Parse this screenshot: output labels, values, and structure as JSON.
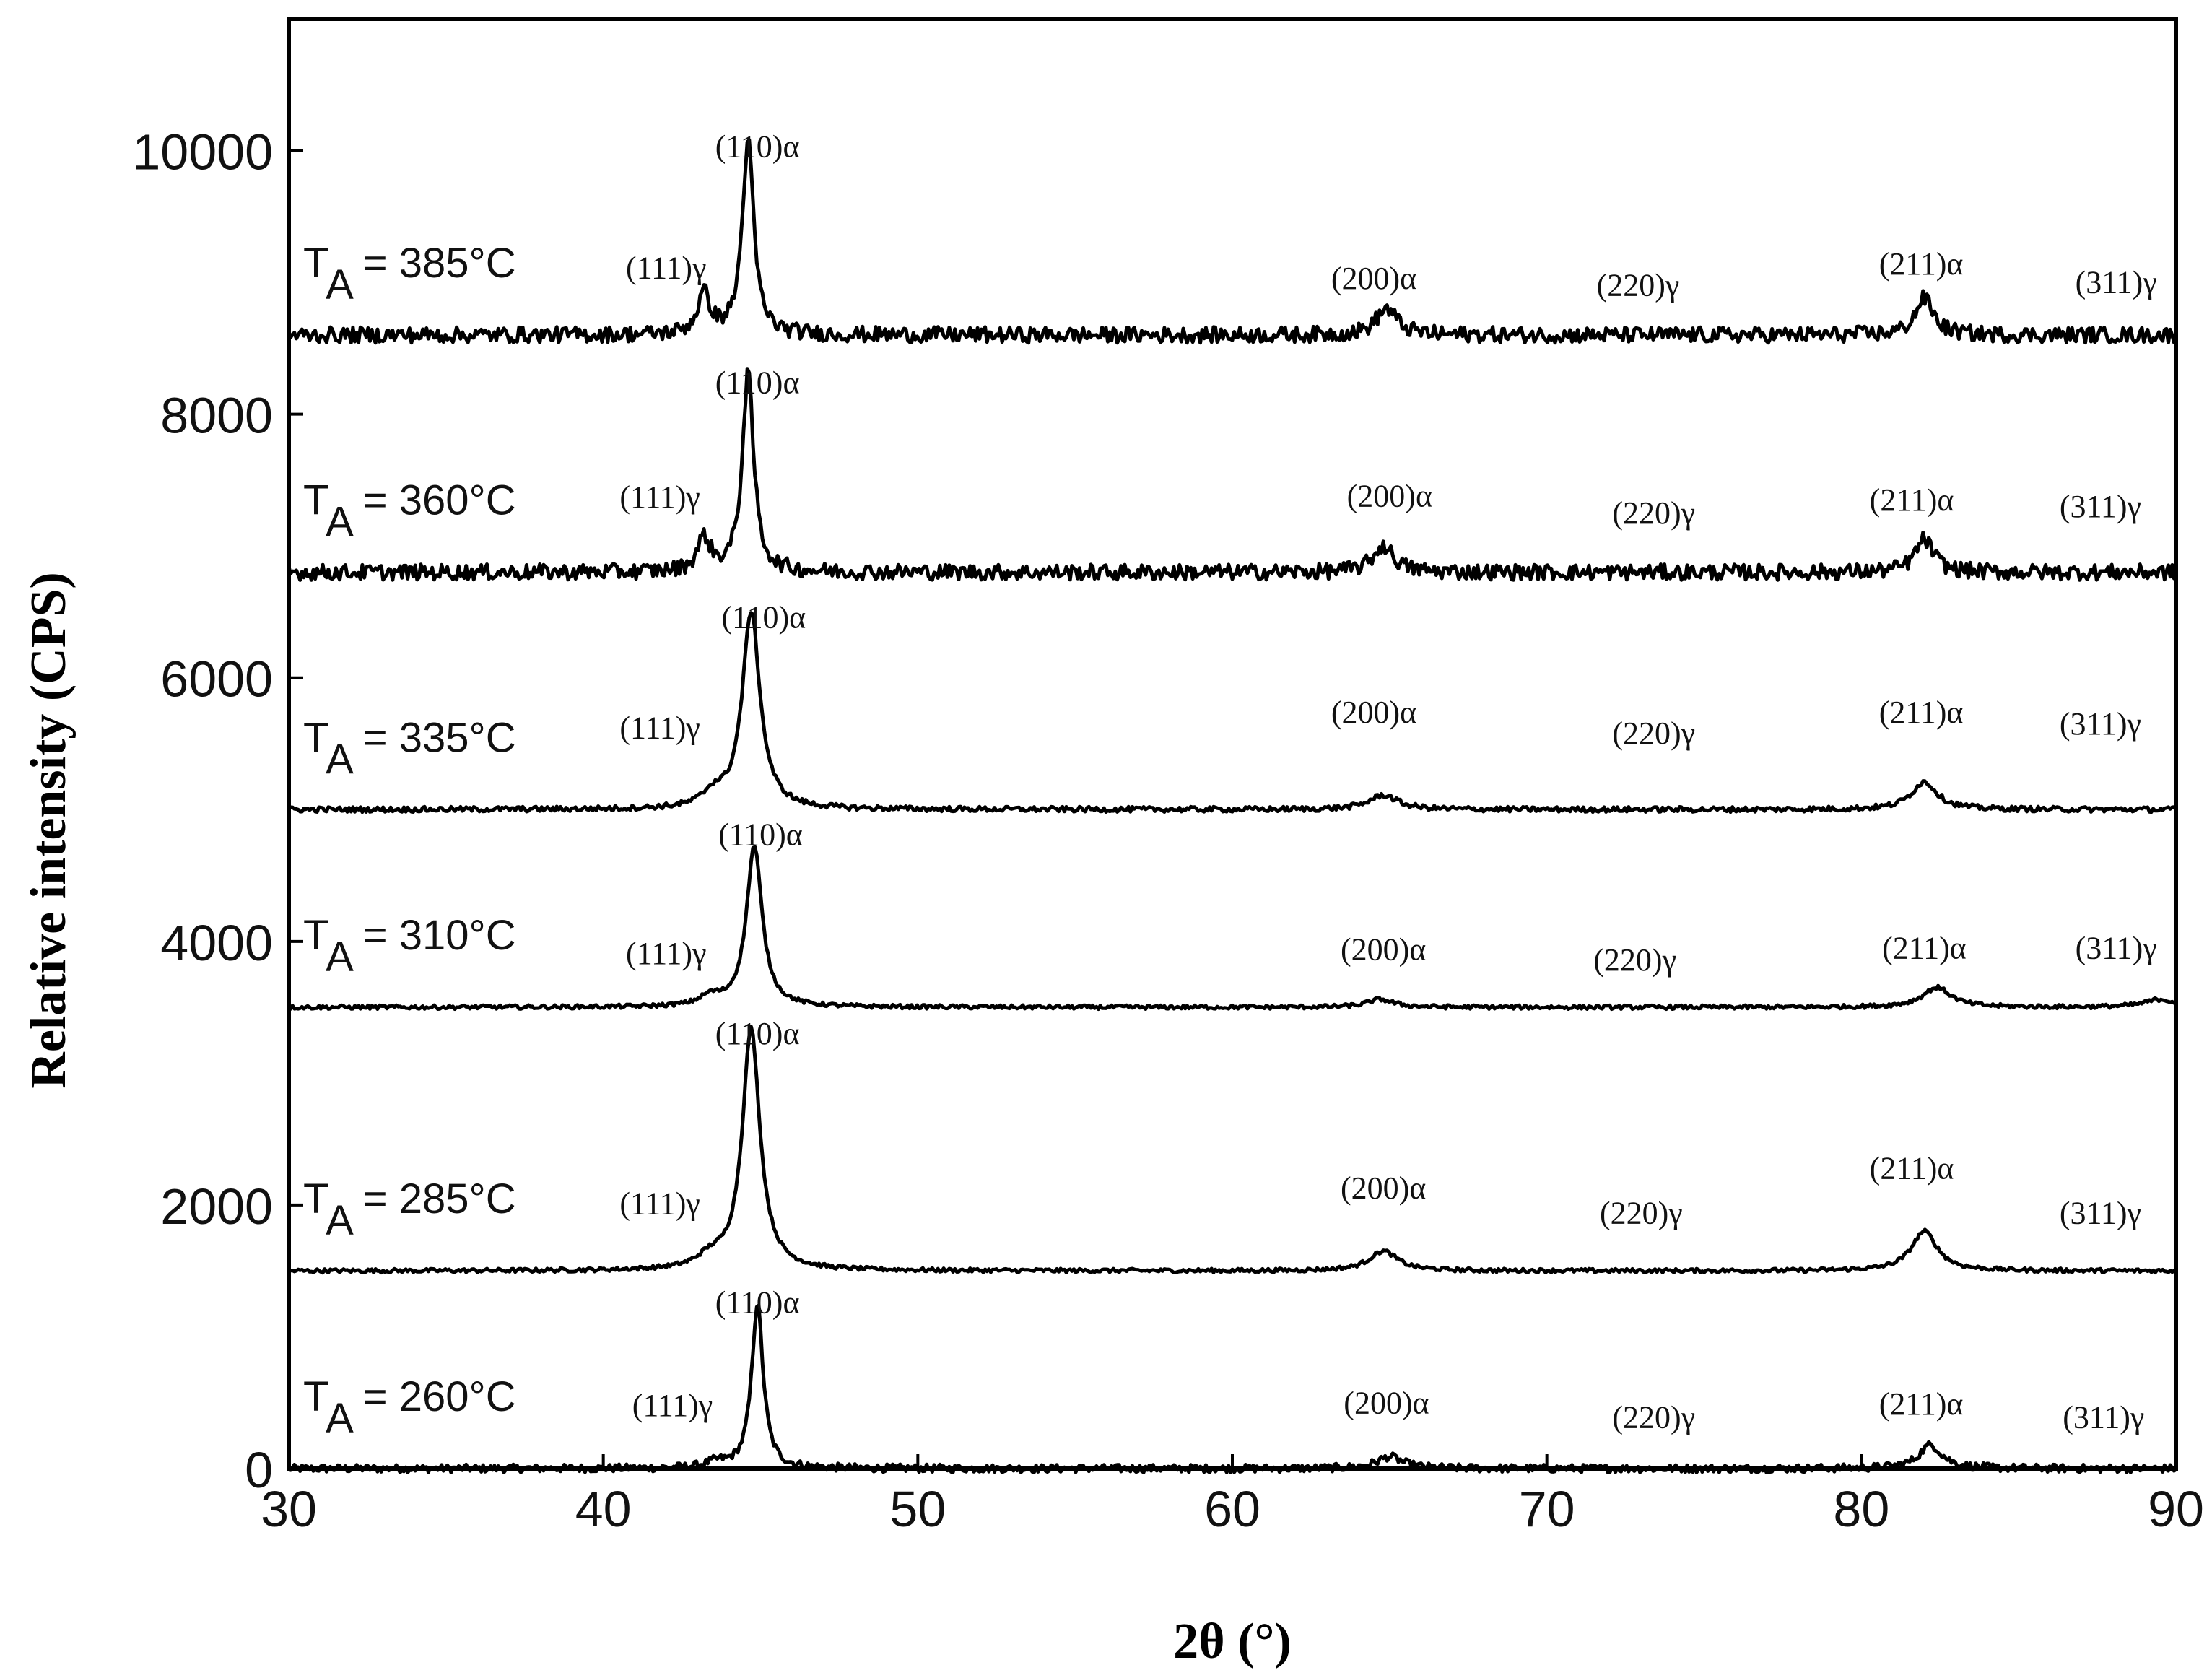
{
  "chart_data": {
    "type": "line",
    "xlabel": "2θ (°)",
    "ylabel": "Relative intensity (CPS)",
    "xlim": [
      30,
      90
    ],
    "ylim": [
      0,
      11000
    ],
    "xticks": [
      "30",
      "40",
      "50",
      "60",
      "70",
      "80",
      "90"
    ],
    "yticks": [
      "0",
      "2000",
      "4000",
      "6000",
      "8000",
      "10000"
    ],
    "grid": false,
    "legend": "none",
    "series": [
      {
        "label_prefix": "T",
        "label_sub": "A",
        "label_suffix": " = 260°C",
        "baseline": 0,
        "noise": 30,
        "peaks": [
          [
            43.6,
            40,
            0.4
          ],
          [
            44.9,
            1250,
            0.22
          ],
          [
            65.0,
            90,
            0.5
          ],
          [
            82.2,
            180,
            0.45
          ]
        ],
        "annotations": [
          {
            "text": "(110)α",
            "x": 44.9,
            "y": 1180
          },
          {
            "text": "(111)γ",
            "x": 42.2,
            "y": 400
          },
          {
            "text": "(200)α",
            "x": 64.9,
            "y": 420
          },
          {
            "text": "(220)γ",
            "x": 73.4,
            "y": 310
          },
          {
            "text": "(211)α",
            "x": 81.9,
            "y": 410
          },
          {
            "text": "(311)γ",
            "x": 87.7,
            "y": 310
          }
        ]
      },
      {
        "label_prefix": "T",
        "label_sub": "A",
        "label_suffix": " = 285°C",
        "baseline": 1500,
        "noise": 15,
        "peaks": [
          [
            43.4,
            80,
            0.5
          ],
          [
            44.7,
            1830,
            0.34
          ],
          [
            64.8,
            150,
            0.55
          ],
          [
            82.0,
            300,
            0.5
          ]
        ],
        "annotations": [
          {
            "text": "(110)α",
            "x": 44.9,
            "y": 3220
          },
          {
            "text": "(111)γ",
            "x": 41.8,
            "y": 1930
          },
          {
            "text": "(200)α",
            "x": 64.8,
            "y": 2050
          },
          {
            "text": "(220)γ",
            "x": 73.0,
            "y": 1860
          },
          {
            "text": "(211)α",
            "x": 81.6,
            "y": 2200
          },
          {
            "text": "(311)γ",
            "x": 87.6,
            "y": 1860
          }
        ]
      },
      {
        "label_prefix": "T",
        "label_sub": "A",
        "label_suffix": " = 310°C",
        "baseline": 3500,
        "noise": 15,
        "peaks": [
          [
            43.4,
            70,
            0.4
          ],
          [
            44.8,
            1220,
            0.3
          ],
          [
            64.7,
            60,
            0.5
          ],
          [
            82.4,
            150,
            0.55
          ],
          [
            89.5,
            60,
            0.6
          ]
        ],
        "annotations": [
          {
            "text": "(110)α",
            "x": 45.0,
            "y": 4730
          },
          {
            "text": "(111)γ",
            "x": 42.0,
            "y": 3830
          },
          {
            "text": "(200)α",
            "x": 64.8,
            "y": 3860
          },
          {
            "text": "(220)γ",
            "x": 72.8,
            "y": 3780
          },
          {
            "text": "(211)α",
            "x": 82.0,
            "y": 3870
          },
          {
            "text": "(311)γ",
            "x": 88.1,
            "y": 3870
          }
        ]
      },
      {
        "label_prefix": "T",
        "label_sub": "A",
        "label_suffix": " = 335°C",
        "baseline": 5000,
        "noise": 20,
        "peaks": [
          [
            43.5,
            100,
            0.4
          ],
          [
            44.7,
            1500,
            0.34
          ],
          [
            64.8,
            110,
            0.55
          ],
          [
            82.0,
            210,
            0.5
          ]
        ],
        "annotations": [
          {
            "text": "(110)α",
            "x": 45.1,
            "y": 6380
          },
          {
            "text": "(111)γ",
            "x": 41.8,
            "y": 5540
          },
          {
            "text": "(200)α",
            "x": 64.5,
            "y": 5660
          },
          {
            "text": "(220)γ",
            "x": 73.4,
            "y": 5500
          },
          {
            "text": "(211)α",
            "x": 81.9,
            "y": 5660
          },
          {
            "text": "(311)γ",
            "x": 87.6,
            "y": 5570
          }
        ]
      },
      {
        "label_prefix": "T",
        "label_sub": "A",
        "label_suffix": " = 360°C",
        "baseline": 6800,
        "noise": 60,
        "peaks": [
          [
            43.2,
            250,
            0.25
          ],
          [
            44.6,
            1500,
            0.22
          ],
          [
            64.8,
            200,
            0.4
          ],
          [
            82.0,
            250,
            0.35
          ]
        ],
        "annotations": [
          {
            "text": "(110)α",
            "x": 44.9,
            "y": 8160
          },
          {
            "text": "(111)γ",
            "x": 41.8,
            "y": 7290
          },
          {
            "text": "(200)α",
            "x": 65.0,
            "y": 7300
          },
          {
            "text": "(220)γ",
            "x": 73.4,
            "y": 7170
          },
          {
            "text": "(211)α",
            "x": 81.6,
            "y": 7270
          },
          {
            "text": "(311)γ",
            "x": 87.6,
            "y": 7220
          }
        ]
      },
      {
        "label_prefix": "T",
        "label_sub": "A",
        "label_suffix": " = 385°C",
        "baseline": 8600,
        "noise": 60,
        "peaks": [
          [
            43.2,
            300,
            0.25
          ],
          [
            44.6,
            1470,
            0.22
          ],
          [
            64.9,
            200,
            0.4
          ],
          [
            82.0,
            280,
            0.35
          ]
        ],
        "annotations": [
          {
            "text": "(110)α",
            "x": 44.9,
            "y": 9950
          },
          {
            "text": "(111)γ",
            "x": 42.0,
            "y": 9030
          },
          {
            "text": "(200)α",
            "x": 64.5,
            "y": 8950
          },
          {
            "text": "(220)γ",
            "x": 72.9,
            "y": 8900
          },
          {
            "text": "(211)α",
            "x": 81.9,
            "y": 9060
          },
          {
            "text": "(311)γ",
            "x": 88.1,
            "y": 8920
          }
        ]
      }
    ]
  }
}
